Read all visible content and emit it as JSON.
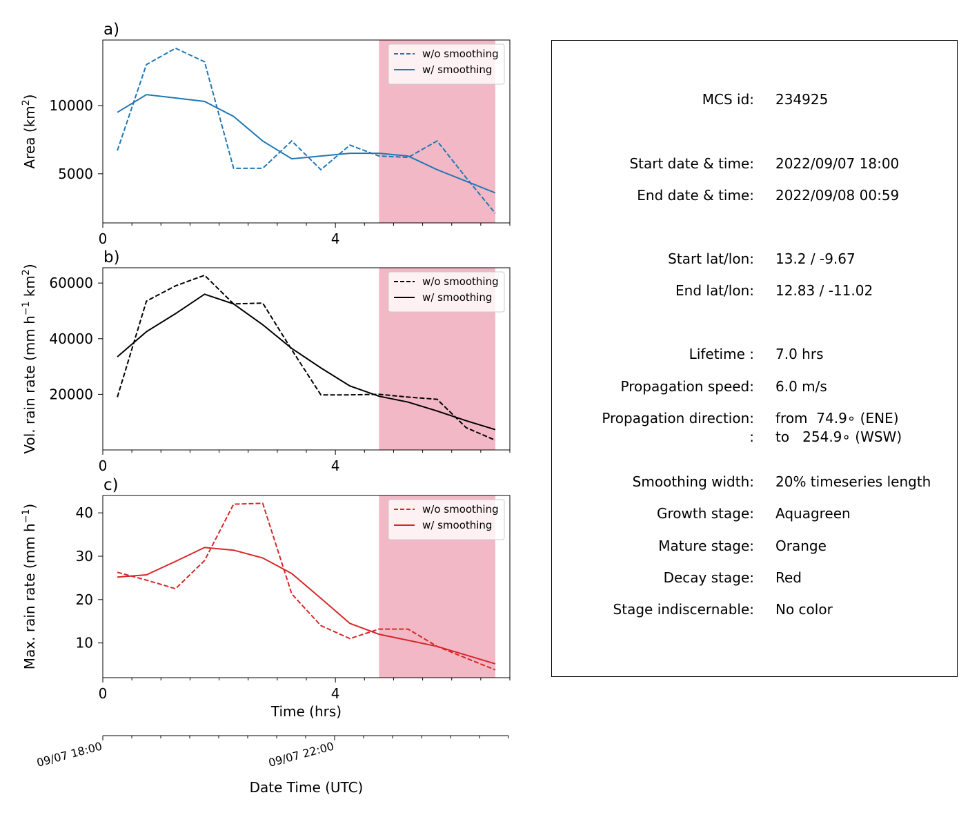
{
  "chart_data": [
    {
      "type": "line",
      "panel_label": "a)",
      "xlabel": "",
      "ylabel": "Area  (km²)",
      "ylabel_main": "Area  (km",
      "ylabel_sup": "2",
      "ylabel_end": ")",
      "xlim": [
        0,
        7
      ],
      "ylim": [
        1400,
        14800
      ],
      "xticks": [
        0,
        4
      ],
      "xtick_labels": [
        "0",
        "4"
      ],
      "yticks": [
        5000,
        10000
      ],
      "ytick_labels": [
        "5000",
        "10000"
      ],
      "shaded_region": {
        "x": [
          4.75,
          6.75
        ],
        "color": "#f2b8c6"
      },
      "legend": {
        "location": "top-right",
        "entries": [
          "w/o smoothing",
          "w/ smoothing"
        ]
      },
      "color": "#1f77b4",
      "x": [
        0.25,
        0.75,
        1.25,
        1.75,
        2.25,
        2.75,
        3.25,
        3.75,
        4.25,
        4.75,
        5.25,
        5.75,
        6.25,
        6.75
      ],
      "series": [
        {
          "name": "w/o smoothing",
          "style": "dashed",
          "values": [
            6700,
            13000,
            14200,
            13200,
            5400,
            5400,
            7400,
            5300,
            7100,
            6300,
            6200,
            7400,
            4700,
            2100
          ]
        },
        {
          "name": "w/ smoothing",
          "style": "solid",
          "values": [
            9500,
            10800,
            10550,
            10300,
            9200,
            7400,
            6100,
            6300,
            6500,
            6500,
            6300,
            5300,
            4450,
            3600
          ]
        }
      ]
    },
    {
      "type": "line",
      "panel_label": "b)",
      "xlabel": "",
      "ylabel": "Vol. rain rate (mm h⁻¹ km²)",
      "ylabel_main": "Vol. rain rate (mm h",
      "ylabel_sup": "−1",
      "ylabel_mid": " km",
      "ylabel_sup2": "2",
      "ylabel_end": ")",
      "xlim": [
        0,
        7
      ],
      "ylim": [
        0,
        65500
      ],
      "xticks": [
        0,
        4
      ],
      "xtick_labels": [
        "0",
        "4"
      ],
      "yticks": [
        20000,
        40000,
        60000
      ],
      "ytick_labels": [
        "20000",
        "40000",
        "60000"
      ],
      "shaded_region": {
        "x": [
          4.75,
          6.75
        ],
        "color": "#f2b8c6"
      },
      "legend": {
        "location": "top-right",
        "entries": [
          "w/o smoothing",
          "w/ smoothing"
        ]
      },
      "color": "#000000",
      "x": [
        0.25,
        0.75,
        1.25,
        1.75,
        2.25,
        2.75,
        3.25,
        3.75,
        4.25,
        4.75,
        5.25,
        5.75,
        6.25,
        6.75
      ],
      "series": [
        {
          "name": "w/o smoothing",
          "style": "dashed",
          "values": [
            19000,
            53500,
            59000,
            62800,
            52500,
            52800,
            36000,
            19800,
            19800,
            20000,
            19000,
            18200,
            8000,
            3500
          ]
        },
        {
          "name": "w/ smoothing",
          "style": "solid",
          "values": [
            33500,
            42500,
            49000,
            56000,
            52500,
            45000,
            36500,
            29500,
            23000,
            19300,
            17200,
            14000,
            10500,
            7300
          ]
        }
      ]
    },
    {
      "type": "line",
      "panel_label": "c)",
      "xlabel": "Time (hrs)",
      "ylabel": "Max. rain rate  (mm h⁻¹)",
      "ylabel_main": "Max. rain rate  (mm h",
      "ylabel_sup": "−1",
      "ylabel_end": ")",
      "xlim": [
        0,
        7
      ],
      "ylim": [
        2,
        44
      ],
      "xticks": [
        0,
        4
      ],
      "xtick_labels": [
        "0",
        "4"
      ],
      "yticks": [
        10,
        20,
        30,
        40
      ],
      "ytick_labels": [
        "10",
        "20",
        "30",
        "40"
      ],
      "shaded_region": {
        "x": [
          4.75,
          6.75
        ],
        "color": "#f2b8c6"
      },
      "legend": {
        "location": "top-right",
        "entries": [
          "w/o smoothing",
          "w/ smoothing"
        ]
      },
      "color": "#d62728",
      "x": [
        0.25,
        0.75,
        1.25,
        1.75,
        2.25,
        2.75,
        3.25,
        3.75,
        4.25,
        4.75,
        5.25,
        5.75,
        6.25,
        6.75
      ],
      "series": [
        {
          "name": "w/o smoothing",
          "style": "dashed",
          "values": [
            26.3,
            24.5,
            22.5,
            29,
            42,
            42.2,
            21.3,
            14,
            11,
            13.2,
            13.2,
            9.2,
            6.5,
            3.8
          ]
        },
        {
          "name": "w/ smoothing",
          "style": "solid",
          "values": [
            25.2,
            25.7,
            28.8,
            32,
            31.4,
            29.6,
            26,
            20.3,
            14.5,
            12,
            10.6,
            9.2,
            7.2,
            5.2
          ]
        }
      ]
    }
  ],
  "datetime_axis": {
    "xlabel": "Date Time (UTC)",
    "xlim": [
      0,
      7
    ],
    "ticks": [
      0,
      4
    ],
    "tick_labels": [
      "09/07 18:00",
      "09/07 22:00"
    ]
  },
  "info": {
    "rows": [
      {
        "label": "MCS id:",
        "value": "234925"
      },
      {
        "label": "Start date & time:",
        "value": "2022/09/07 18:00"
      },
      {
        "label": "End date & time:",
        "value": "2022/09/08 00:59"
      },
      {
        "label": "Start lat/lon:",
        "value": "13.2 / -9.67"
      },
      {
        "label": "End lat/lon:",
        "value": "12.83 / -11.02"
      },
      {
        "label": "Lifetime :",
        "value": "7.0 hrs"
      },
      {
        "label": "Propagation speed:",
        "value": "6.0 m/s"
      },
      {
        "label": "Propagation direction:",
        "value": "from  74.9∘ (ENE)"
      },
      {
        "label": ":",
        "value": "to   254.9∘ (WSW)"
      },
      {
        "label": "Smoothing width:",
        "value": "20% timeseries length"
      },
      {
        "label": "Growth stage:",
        "value": "Aquagreen"
      },
      {
        "label": "Mature stage:",
        "value": "Orange"
      },
      {
        "label": "Decay stage:",
        "value": "Red"
      },
      {
        "label": "Stage indiscernable:",
        "value": "No color"
      }
    ]
  }
}
